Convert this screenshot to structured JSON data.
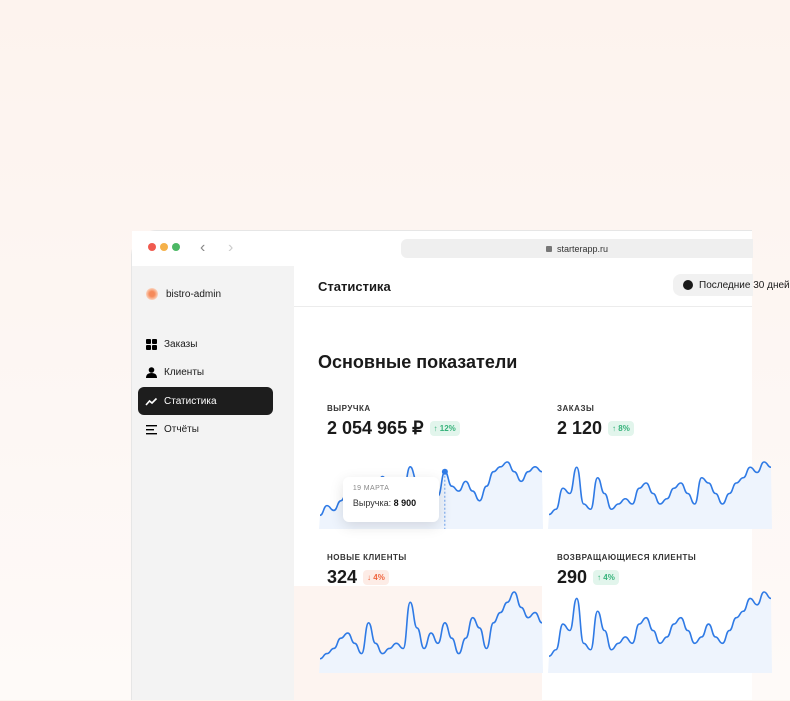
{
  "browser": {
    "url": "starterapp.ru",
    "dots": [
      "#f05a4f",
      "#f5b14a",
      "#4cb865"
    ]
  },
  "sidebar": {
    "brand": "bistro-admin",
    "items": [
      {
        "label": "Заказы",
        "icon": "grid-icon",
        "active": false
      },
      {
        "label": "Клиенты",
        "icon": "user-icon",
        "active": false
      },
      {
        "label": "Статистика",
        "icon": "trend-icon",
        "active": true
      },
      {
        "label": "Отчёты",
        "icon": "list-icon",
        "active": false
      }
    ]
  },
  "header": {
    "title": "Статистика",
    "period": "Последние 30 дней"
  },
  "section_title": "Основные показатели",
  "colors": {
    "line": "#2f7ae5",
    "fill": "#eef4fd"
  },
  "cards": [
    {
      "label": "ВЫРУЧКА",
      "value": "2 054 965 ₽",
      "change": "↑ 12%",
      "trend": "up",
      "values": [
        2,
        4,
        3,
        5,
        7,
        8,
        6,
        4,
        7,
        10,
        8,
        6,
        7,
        12,
        9,
        5,
        8,
        6,
        11,
        8,
        7,
        9,
        7,
        5,
        8,
        11,
        12,
        13,
        11,
        9,
        11,
        12,
        11
      ]
    },
    {
      "label": "ЗАКАЗЫ",
      "value": "2 120",
      "change": "↑ 8%",
      "trend": "up",
      "values": [
        2,
        3,
        7,
        6,
        11,
        4,
        3,
        9,
        6,
        3,
        4,
        5,
        4,
        7,
        8,
        6,
        4,
        5,
        7,
        8,
        6,
        4,
        9,
        8,
        6,
        4,
        6,
        8,
        9,
        11,
        10,
        12,
        11
      ]
    },
    {
      "label": "НОВЫЕ КЛИЕНТЫ",
      "value": "324",
      "change": "↓ 4%",
      "trend": "down",
      "values": [
        2,
        3,
        4,
        6,
        7,
        5,
        3,
        9,
        5,
        3,
        4,
        5,
        4,
        13,
        8,
        4,
        7,
        5,
        9,
        6,
        3,
        6,
        10,
        8,
        4,
        9,
        11,
        13,
        15,
        12,
        10,
        11,
        9
      ]
    },
    {
      "label": "ВОЗВРАЩАЮЩИЕСЯ КЛИЕНТЫ",
      "value": "290",
      "change": "↑ 4%",
      "trend": "up",
      "values": [
        2,
        3,
        7,
        6,
        11,
        4,
        3,
        9,
        6,
        3,
        4,
        5,
        4,
        7,
        8,
        6,
        4,
        5,
        7,
        8,
        6,
        4,
        5,
        7,
        5,
        4,
        6,
        8,
        9,
        11,
        10,
        12,
        11
      ]
    }
  ],
  "tooltip": {
    "date": "19 МАРТА",
    "label": "Выручка:",
    "value": "8 900"
  }
}
